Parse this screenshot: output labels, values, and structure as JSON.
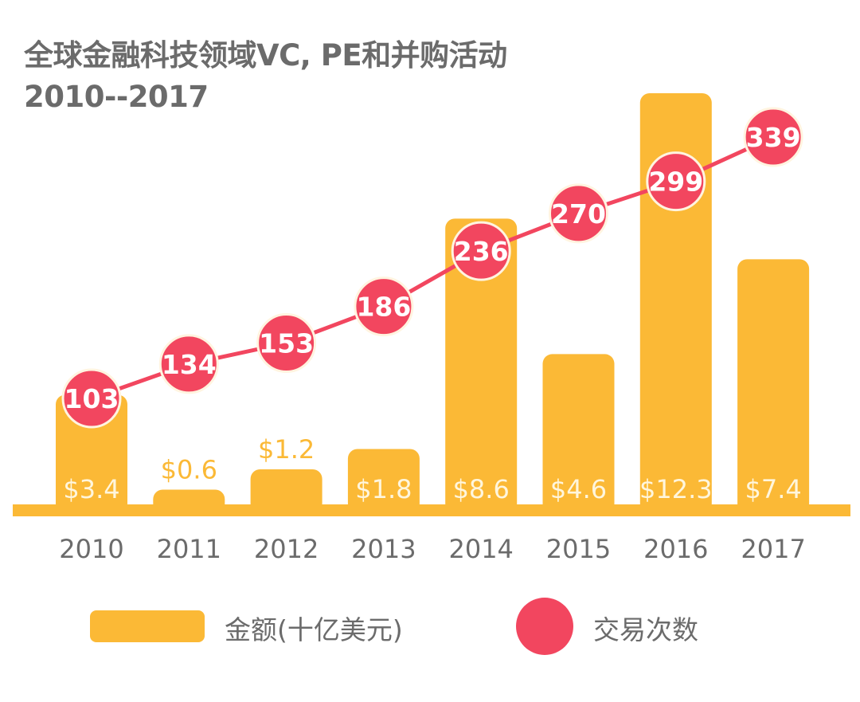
{
  "title_line1": "全球金融科技领域VC, PE和并购活动",
  "title_line2": "2010--2017",
  "colors": {
    "bar": "#fbb936",
    "line": "#f2465f",
    "text": "#6b6b6b",
    "label_on_bar": "#fff6dd"
  },
  "legend": {
    "bar_label": "金额(十亿美元)",
    "line_label": "交易次数"
  },
  "chart_data": {
    "type": "bar+line",
    "title": "全球金融科技领域VC, PE和并购活动 2010--2017",
    "categories": [
      "2010",
      "2011",
      "2012",
      "2013",
      "2014",
      "2015",
      "2016",
      "2017"
    ],
    "series": [
      {
        "name": "金额(十亿美元)",
        "type": "bar",
        "values": [
          3.4,
          0.6,
          1.2,
          1.8,
          8.6,
          4.6,
          12.3,
          7.4
        ],
        "labels": [
          "$3.4",
          "$0.6",
          "$1.2",
          "$1.8",
          "$8.6",
          "$4.6",
          "$12.3",
          "$7.4"
        ]
      },
      {
        "name": "交易次数",
        "type": "line",
        "values": [
          103,
          134,
          153,
          186,
          236,
          270,
          299,
          339
        ]
      }
    ],
    "xlabel": "",
    "ylabel": "",
    "grid": false,
    "legend_position": "bottom"
  }
}
